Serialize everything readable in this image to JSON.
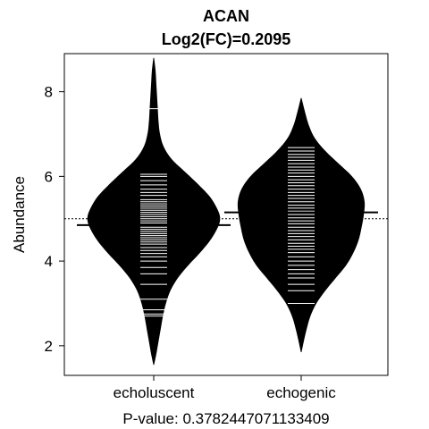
{
  "chart_data": {
    "type": "beanplot",
    "title": "ACAN",
    "subtitle": "Log2(FC)=0.2095",
    "ylabel": "Abundance",
    "xlabel": "P-value: 0.3782447071133409",
    "categories": [
      "echoluscent",
      "echogenic"
    ],
    "ylim": [
      1.3,
      8.9
    ],
    "yticks": [
      2,
      4,
      6,
      8
    ],
    "overall_mean": 5.0,
    "grid": false,
    "legend": "none",
    "colors": {
      "fill": "#000000",
      "lines": "#ffffff",
      "background": "#ffffff"
    },
    "series": [
      {
        "category": "echoluscent",
        "mean": 4.85,
        "range": [
          1.55,
          8.8
        ],
        "density": [
          [
            1.55,
            0.0
          ],
          [
            1.8,
            0.03
          ],
          [
            2.1,
            0.06
          ],
          [
            2.4,
            0.09
          ],
          [
            2.7,
            0.12
          ],
          [
            3.0,
            0.16
          ],
          [
            3.3,
            0.22
          ],
          [
            3.6,
            0.32
          ],
          [
            3.9,
            0.46
          ],
          [
            4.2,
            0.62
          ],
          [
            4.5,
            0.76
          ],
          [
            4.8,
            0.86
          ],
          [
            5.0,
            0.89
          ],
          [
            5.2,
            0.86
          ],
          [
            5.5,
            0.76
          ],
          [
            5.8,
            0.6
          ],
          [
            6.1,
            0.42
          ],
          [
            6.4,
            0.24
          ],
          [
            6.7,
            0.13
          ],
          [
            7.0,
            0.08
          ],
          [
            7.3,
            0.06
          ],
          [
            7.6,
            0.05
          ],
          [
            7.9,
            0.04
          ],
          [
            8.2,
            0.03
          ],
          [
            8.5,
            0.02
          ],
          [
            8.8,
            0.0
          ]
        ],
        "observations": [
          2.7,
          2.75,
          2.85,
          3.1,
          3.45,
          3.7,
          3.85,
          4.0,
          4.1,
          4.18,
          4.25,
          4.32,
          4.4,
          4.45,
          4.5,
          4.55,
          4.6,
          4.65,
          4.7,
          4.75,
          4.8,
          4.85,
          4.9,
          4.95,
          5.0,
          5.05,
          5.1,
          5.15,
          5.2,
          5.25,
          5.3,
          5.35,
          5.4,
          5.45,
          5.55,
          5.62,
          5.7,
          5.8,
          5.9,
          6.0,
          6.05,
          7.6
        ]
      },
      {
        "category": "echogenic",
        "mean": 5.15,
        "range": [
          1.85,
          7.85
        ],
        "density": [
          [
            1.85,
            0.0
          ],
          [
            2.1,
            0.03
          ],
          [
            2.4,
            0.07
          ],
          [
            2.7,
            0.12
          ],
          [
            3.0,
            0.2
          ],
          [
            3.3,
            0.32
          ],
          [
            3.6,
            0.46
          ],
          [
            3.9,
            0.6
          ],
          [
            4.2,
            0.7
          ],
          [
            4.5,
            0.77
          ],
          [
            4.8,
            0.81
          ],
          [
            5.1,
            0.84
          ],
          [
            5.4,
            0.85
          ],
          [
            5.7,
            0.8
          ],
          [
            6.0,
            0.68
          ],
          [
            6.3,
            0.5
          ],
          [
            6.6,
            0.32
          ],
          [
            6.9,
            0.18
          ],
          [
            7.2,
            0.1
          ],
          [
            7.5,
            0.05
          ],
          [
            7.85,
            0.0
          ]
        ],
        "observations": [
          3.0,
          3.3,
          3.45,
          3.6,
          3.7,
          3.8,
          3.9,
          4.0,
          4.1,
          4.2,
          4.28,
          4.35,
          4.42,
          4.5,
          4.58,
          4.65,
          4.72,
          4.8,
          4.88,
          4.95,
          5.02,
          5.1,
          5.18,
          5.25,
          5.32,
          5.4,
          5.48,
          5.55,
          5.62,
          5.7,
          5.78,
          5.85,
          5.92,
          6.0,
          6.08,
          6.15,
          6.22,
          6.3,
          6.38,
          6.45,
          6.52,
          6.6,
          6.68
        ]
      }
    ]
  }
}
